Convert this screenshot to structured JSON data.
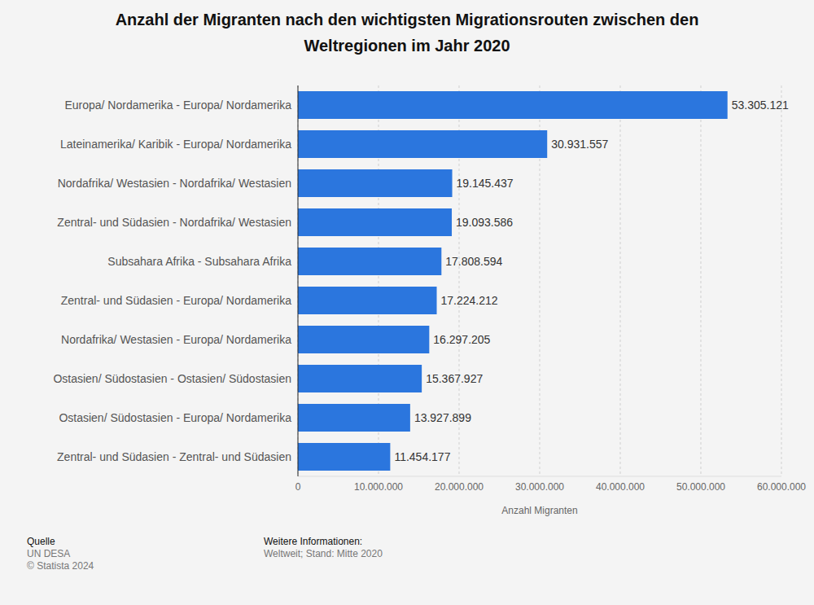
{
  "chart_data": {
    "type": "bar",
    "orientation": "horizontal",
    "title": "Anzahl der Migranten nach den wichtigsten Migrationsrouten zwischen den Weltregionen im Jahr 2020",
    "x_label": "Anzahl Migranten",
    "categories": [
      "Europa/ Nordamerika - Europa/ Nordamerika",
      "Lateinamerika/ Karibik - Europa/ Nordamerika",
      "Nordafrika/ Westasien - Nordafrika/ Westasien",
      "Zentral- und Südasien - Nordafrika/ Westasien",
      "Subsahara Afrika - Subsahara Afrika",
      "Zentral- und Südasien - Europa/ Nordamerika",
      "Nordafrika/ Westasien - Europa/ Nordamerika",
      "Ostasien/ Südostasien - Ostasien/ Südostasien",
      "Ostasien/ Südostasien - Europa/ Nordamerika",
      "Zentral- und Südasien - Zentral- und Südasien"
    ],
    "values": [
      53305121,
      30931557,
      19145437,
      19093586,
      17808594,
      17224212,
      16297205,
      15367927,
      13927899,
      11454177
    ],
    "value_labels": [
      "53.305.121",
      "30.931.557",
      "19.145.437",
      "19.093.586",
      "17.808.594",
      "17.224.212",
      "16.297.205",
      "15.367.927",
      "13.927.899",
      "11.454.177"
    ],
    "data_labels": true,
    "color": "#2b76de",
    "xlim": [
      0,
      60000000
    ],
    "xticks": [
      0,
      {
        "value": 10000000,
        "label": "10.000.000"
      },
      {
        "value": 20000000,
        "label": "20.000.000"
      },
      {
        "value": 30000000,
        "label": "30.000.000"
      },
      {
        "value": 40000000,
        "label": "40.000.000"
      },
      {
        "value": 50000000,
        "label": "50.000.000"
      },
      {
        "value": 60000000,
        "label": "60.000.000"
      }
    ],
    "grid": true,
    "annotations": {
      "source_label": "Quelle",
      "source": "UN DESA",
      "copyright": "© Statista 2024",
      "info_label": "Weitere Informationen:",
      "info": "Weltweit; Stand: Mitte 2020"
    }
  }
}
